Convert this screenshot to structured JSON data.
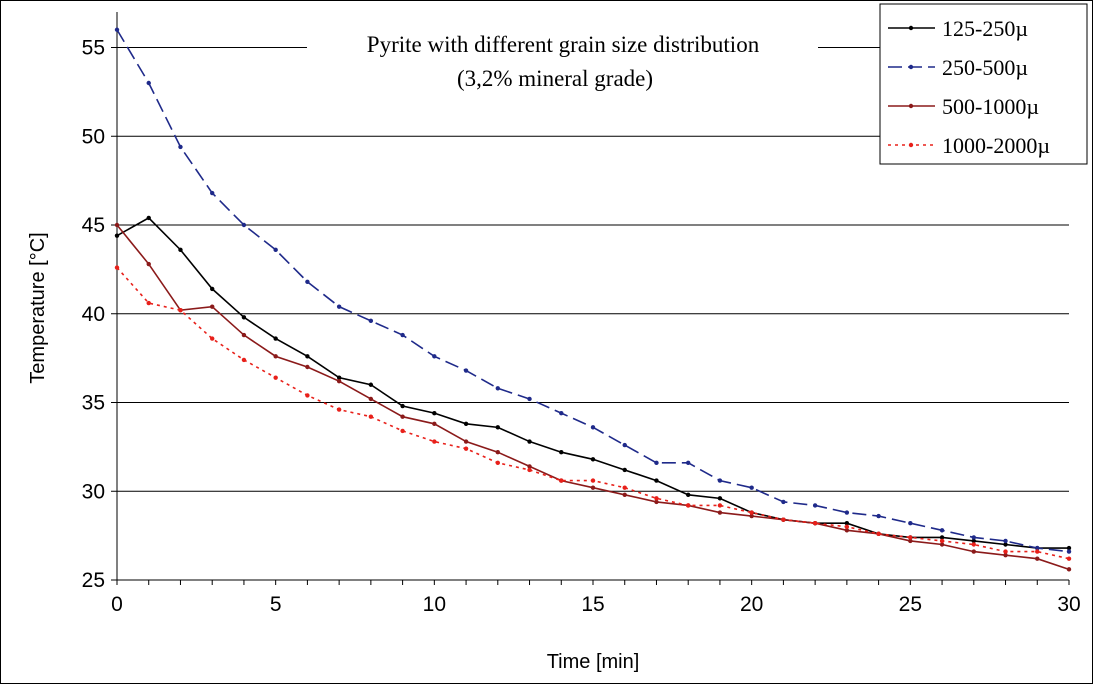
{
  "chart_data": {
    "type": "line",
    "title": "Pyrite with different grain size distribution",
    "subtitle": "(3,2% mineral grade)",
    "xlabel": "Time [min]",
    "ylabel": "Temperature [°C]",
    "xlim": [
      0,
      30
    ],
    "ylim": [
      25,
      57
    ],
    "xticks": [
      "0",
      "5",
      "10",
      "15",
      "20",
      "25",
      "30"
    ],
    "yticks": [
      "25",
      "30",
      "35",
      "40",
      "45",
      "50",
      "55"
    ],
    "grid": "horizontal",
    "legend_position": "top-right",
    "x": [
      0,
      1,
      2,
      3,
      4,
      5,
      6,
      7,
      8,
      9,
      10,
      11,
      12,
      13,
      14,
      15,
      16,
      17,
      18,
      19,
      20,
      21,
      22,
      23,
      24,
      25,
      26,
      27,
      28,
      29,
      30
    ],
    "series": [
      {
        "name": "125-250µ",
        "color": "#000000",
        "dash": "solid",
        "values": [
          44.4,
          45.4,
          43.6,
          41.4,
          39.8,
          38.6,
          37.6,
          36.4,
          36.0,
          34.8,
          34.4,
          33.8,
          33.6,
          32.8,
          32.2,
          31.8,
          31.2,
          30.6,
          29.8,
          29.6,
          28.8,
          28.4,
          28.2,
          28.2,
          27.6,
          27.4,
          27.4,
          27.2,
          27.0,
          26.8,
          26.8
        ]
      },
      {
        "name": "250-500µ",
        "color": "#1f2a8a",
        "dash": "dashed",
        "values": [
          56.0,
          53.0,
          49.4,
          46.8,
          45.0,
          43.6,
          41.8,
          40.4,
          39.6,
          38.8,
          37.6,
          36.8,
          35.8,
          35.2,
          34.4,
          33.6,
          32.6,
          31.6,
          31.6,
          30.6,
          30.2,
          29.4,
          29.2,
          28.8,
          28.6,
          28.2,
          27.8,
          27.4,
          27.2,
          26.8,
          26.6
        ]
      },
      {
        "name": "500-1000µ",
        "color": "#8b1a1a",
        "dash": "solid",
        "values": [
          45.0,
          42.8,
          40.2,
          40.4,
          38.8,
          37.6,
          37.0,
          36.2,
          35.2,
          34.2,
          33.8,
          32.8,
          32.2,
          31.4,
          30.6,
          30.2,
          29.8,
          29.4,
          29.2,
          28.8,
          28.6,
          28.4,
          28.2,
          27.8,
          27.6,
          27.2,
          27.0,
          26.6,
          26.4,
          26.2,
          25.6
        ]
      },
      {
        "name": "1000-2000µ",
        "color": "#e8201a",
        "dash": "dotted",
        "values": [
          42.6,
          40.6,
          40.2,
          38.6,
          37.4,
          36.4,
          35.4,
          34.6,
          34.2,
          33.4,
          32.8,
          32.4,
          31.6,
          31.2,
          30.6,
          30.6,
          30.2,
          29.6,
          29.2,
          29.2,
          28.8,
          28.4,
          28.2,
          28.0,
          27.6,
          27.4,
          27.2,
          27.0,
          26.6,
          26.6,
          26.2
        ]
      }
    ]
  }
}
